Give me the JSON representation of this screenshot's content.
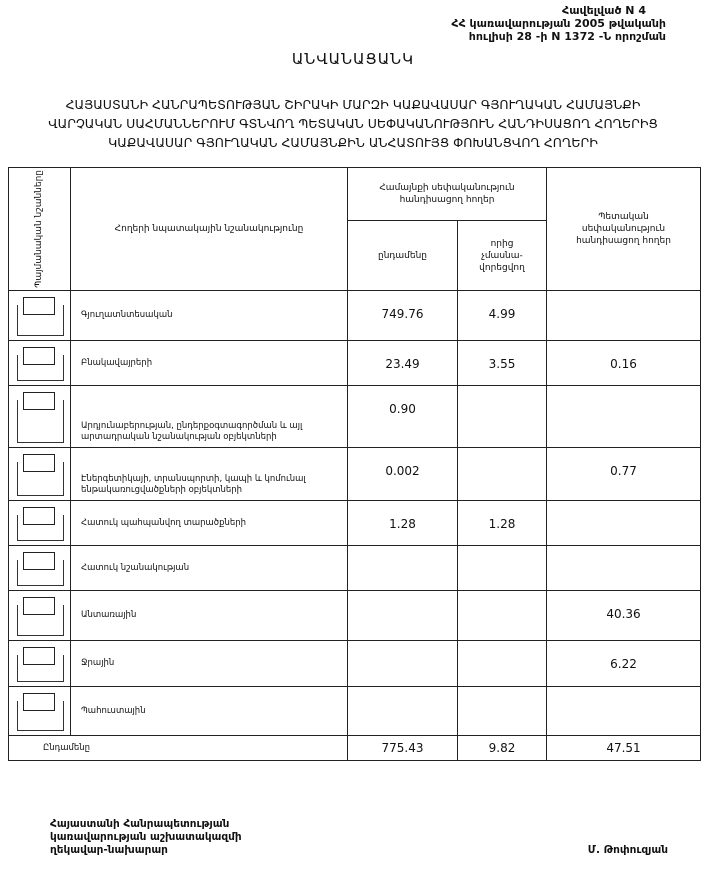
{
  "annex": {
    "line1": "Հավելված N 4",
    "line2": "ՀՀ կառավարության 2005 թվականի",
    "line3": "հուլիսի 28 -ի N 1372 -Ն որոշման"
  },
  "title": "ԱՆՎԱՆԱՑԱՆԿ",
  "subtitle": "ՀԱՅԱՍՏԱՆԻ ՀԱՆՐԱՊԵՏՈՒԹՅԱՆ ՇԻՐԱԿԻ ՄԱՐԶԻ ԿԱՔԱՎԱՍԱՐ ԳՅՈՒՂԱԿԱՆ ՀԱՄԱՅՆՔԻ ՎԱՐՉԱԿԱՆ ՍԱՀՄԱՆՆԵՐՈՒՄ ԳՏՆՎՈՂ ՊԵՏԱԿԱՆ ՍԵՓԱԿԱՆՈՒԹՅՈՒՆ ՀԱՆԴԻՍԱՑՈՂ ՀՈՂԵՐԻՑ ԿԱՔԱՎԱՍԱՐ ԳՅՈՒՂԱԿԱՆ ՀԱՄԱՅՆՔԻՆ ԱՆՀԱՏՈՒՅՑ ՓՈԽԱՆՑՎՈՂ ՀՈՂԵՐԻ",
  "table": {
    "headers": {
      "symbols": "Պայմանական նշանները",
      "purpose": "Հողերի նպատակային նշանակությունը",
      "community": "Համայնքի սեփականություն հանդիսացող հողեր",
      "total": "ընդամենը",
      "of_which": "որից չմասնա-վորեցվող",
      "state": "Պետական սեփականություն հանդիսացող հողեր"
    },
    "rows": [
      {
        "label": "Գյուղատնտեսական",
        "total": "749.76",
        "of_which": "4.99",
        "state": ""
      },
      {
        "label": "Բնակավայրերի",
        "total": "23.49",
        "of_which": "3.55",
        "state": "0.16"
      },
      {
        "label": "Արդյունաբերության, ընդերքօգտագործման և այլ արտադրական նշանակության օբյեկտների",
        "total": "0.90",
        "of_which": "",
        "state": ""
      },
      {
        "label": "Էներգետիկայի, տրանսպորտի, կապի և կոմունալ ենթակառուցվածքների օբյեկտների",
        "total": "0.002",
        "of_which": "",
        "state": "0.77"
      },
      {
        "label": "Հատուկ պահպանվող տարածքների",
        "total": "1.28",
        "of_which": "1.28",
        "state": ""
      },
      {
        "label": "Հատուկ նշանակության",
        "total": "",
        "of_which": "",
        "state": ""
      },
      {
        "label": "Անտառային",
        "total": "",
        "of_which": "",
        "state": "40.36"
      },
      {
        "label": "Ջրային",
        "total": "",
        "of_which": "",
        "state": "6.22"
      },
      {
        "label": "Պահուստային",
        "total": "",
        "of_which": "",
        "state": ""
      }
    ],
    "totals": {
      "label": "Ընդամենը",
      "total": "775.43",
      "of_which": "9.82",
      "state": "47.51"
    }
  },
  "footer": {
    "line1": "Հայաստանի Հանրապետության",
    "line2": "կառավարության աշխատակազմի",
    "line3": "ղեկավար-նախարար",
    "signatory": "Մ. Թոփուզյան"
  }
}
